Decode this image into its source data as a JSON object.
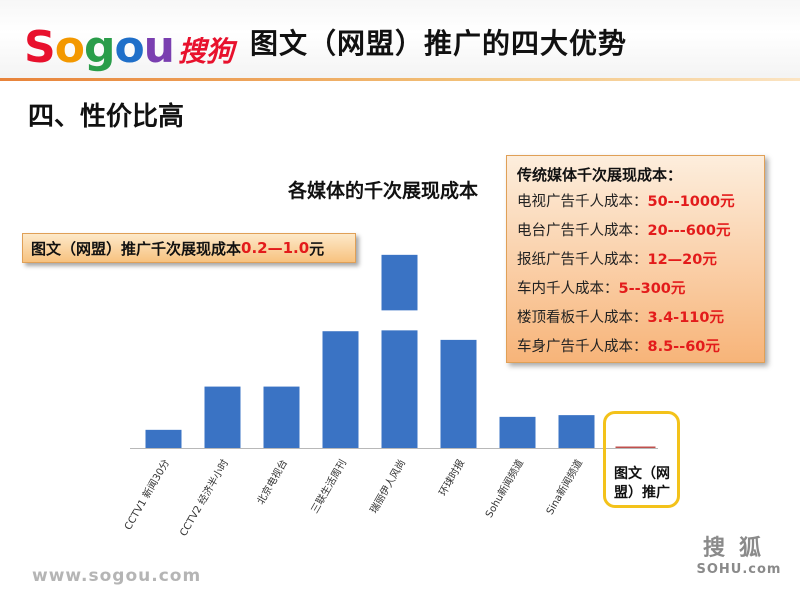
{
  "header": {
    "logo": {
      "letters": [
        {
          "ch": "S",
          "color": "#e8112d"
        },
        {
          "ch": "o",
          "color": "#f39800"
        },
        {
          "ch": "g",
          "color": "#2a9d4a"
        },
        {
          "ch": "o",
          "color": "#1f6fc9"
        },
        {
          "ch": "u",
          "color": "#7a3fb0"
        }
      ],
      "cn": "搜狗"
    },
    "title": "图文（网盟）推广的四大优势"
  },
  "section_title": "四、性价比高",
  "callout": {
    "prefix": "图文（网盟）推广千次展现成本",
    "highlight": "0.2—1.0",
    "suffix": "元"
  },
  "cost_box": {
    "title": "传统媒体千次展现成本：",
    "items": [
      {
        "label": "电视广告千人成本：",
        "value": "50--1000元"
      },
      {
        "label": "电台广告千人成本：",
        "value": "20---600元"
      },
      {
        "label": "报纸广告千人成本：",
        "value": "12—20元"
      },
      {
        "label": "车内千人成本：",
        "value": "5--300元"
      },
      {
        "label": "楼顶看板千人成本：",
        "value": "3.4-110元"
      },
      {
        "label": "车身广告千人成本：",
        "value": "8.5--60元"
      }
    ]
  },
  "chart_data": {
    "type": "bar",
    "title": "各媒体的千次展现成本",
    "categories": [
      "CCTV1 新闻30分",
      "CCTV2 经济半小时",
      "北京电视台",
      "三联生活周刊",
      "瑞丽伊人风尚",
      "环球时报",
      "Sohu新闻频道",
      "Sina新闻频道",
      "图文（网盟）推广"
    ],
    "values": [
      21,
      71,
      71,
      135,
      205,
      125,
      36,
      38,
      1
    ],
    "axis_break": {
      "category_index": 4,
      "from": 136,
      "to": 157
    },
    "ylim": [
      0,
      210
    ],
    "xlabel": "",
    "ylabel": "",
    "bar_color": "#3a73c4",
    "highlight_color": "#c0504d",
    "grid": false,
    "highlighted_category": "图文（网盟）推广"
  },
  "highlight_label": "图文（网\n盟）推广",
  "footer": {
    "url": "www.sogou.com",
    "sohu_cn": "搜狐",
    "sohu_en": "SOHU.com"
  }
}
